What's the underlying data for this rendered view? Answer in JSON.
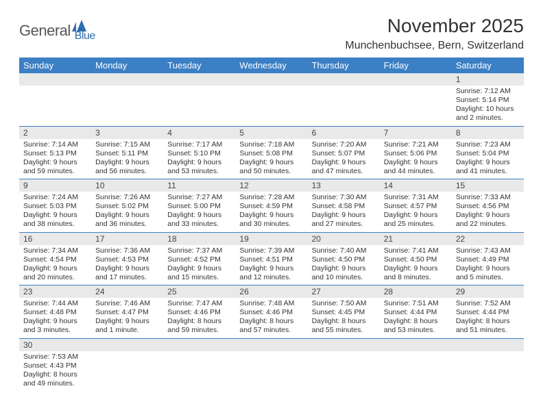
{
  "brand": {
    "part1": "General",
    "part2": "Blue"
  },
  "title": "November 2025",
  "location": "Munchenbuchsee, Bern, Switzerland",
  "colors": {
    "header_bg": "#3b7fc4",
    "header_text": "#ffffff",
    "num_strip_bg": "#e9e9e9",
    "divider": "#3b7fc4",
    "body_text": "#333333",
    "brand_gray": "#555555",
    "brand_blue": "#2f6eab"
  },
  "day_names": [
    "Sunday",
    "Monday",
    "Tuesday",
    "Wednesday",
    "Thursday",
    "Friday",
    "Saturday"
  ],
  "weeks": [
    [
      null,
      null,
      null,
      null,
      null,
      null,
      {
        "n": "1",
        "sunrise": "Sunrise: 7:12 AM",
        "sunset": "Sunset: 5:14 PM",
        "day1": "Daylight: 10 hours",
        "day2": "and 2 minutes."
      }
    ],
    [
      {
        "n": "2",
        "sunrise": "Sunrise: 7:14 AM",
        "sunset": "Sunset: 5:13 PM",
        "day1": "Daylight: 9 hours",
        "day2": "and 59 minutes."
      },
      {
        "n": "3",
        "sunrise": "Sunrise: 7:15 AM",
        "sunset": "Sunset: 5:11 PM",
        "day1": "Daylight: 9 hours",
        "day2": "and 56 minutes."
      },
      {
        "n": "4",
        "sunrise": "Sunrise: 7:17 AM",
        "sunset": "Sunset: 5:10 PM",
        "day1": "Daylight: 9 hours",
        "day2": "and 53 minutes."
      },
      {
        "n": "5",
        "sunrise": "Sunrise: 7:18 AM",
        "sunset": "Sunset: 5:08 PM",
        "day1": "Daylight: 9 hours",
        "day2": "and 50 minutes."
      },
      {
        "n": "6",
        "sunrise": "Sunrise: 7:20 AM",
        "sunset": "Sunset: 5:07 PM",
        "day1": "Daylight: 9 hours",
        "day2": "and 47 minutes."
      },
      {
        "n": "7",
        "sunrise": "Sunrise: 7:21 AM",
        "sunset": "Sunset: 5:06 PM",
        "day1": "Daylight: 9 hours",
        "day2": "and 44 minutes."
      },
      {
        "n": "8",
        "sunrise": "Sunrise: 7:23 AM",
        "sunset": "Sunset: 5:04 PM",
        "day1": "Daylight: 9 hours",
        "day2": "and 41 minutes."
      }
    ],
    [
      {
        "n": "9",
        "sunrise": "Sunrise: 7:24 AM",
        "sunset": "Sunset: 5:03 PM",
        "day1": "Daylight: 9 hours",
        "day2": "and 38 minutes."
      },
      {
        "n": "10",
        "sunrise": "Sunrise: 7:26 AM",
        "sunset": "Sunset: 5:02 PM",
        "day1": "Daylight: 9 hours",
        "day2": "and 36 minutes."
      },
      {
        "n": "11",
        "sunrise": "Sunrise: 7:27 AM",
        "sunset": "Sunset: 5:00 PM",
        "day1": "Daylight: 9 hours",
        "day2": "and 33 minutes."
      },
      {
        "n": "12",
        "sunrise": "Sunrise: 7:28 AM",
        "sunset": "Sunset: 4:59 PM",
        "day1": "Daylight: 9 hours",
        "day2": "and 30 minutes."
      },
      {
        "n": "13",
        "sunrise": "Sunrise: 7:30 AM",
        "sunset": "Sunset: 4:58 PM",
        "day1": "Daylight: 9 hours",
        "day2": "and 27 minutes."
      },
      {
        "n": "14",
        "sunrise": "Sunrise: 7:31 AM",
        "sunset": "Sunset: 4:57 PM",
        "day1": "Daylight: 9 hours",
        "day2": "and 25 minutes."
      },
      {
        "n": "15",
        "sunrise": "Sunrise: 7:33 AM",
        "sunset": "Sunset: 4:56 PM",
        "day1": "Daylight: 9 hours",
        "day2": "and 22 minutes."
      }
    ],
    [
      {
        "n": "16",
        "sunrise": "Sunrise: 7:34 AM",
        "sunset": "Sunset: 4:54 PM",
        "day1": "Daylight: 9 hours",
        "day2": "and 20 minutes."
      },
      {
        "n": "17",
        "sunrise": "Sunrise: 7:36 AM",
        "sunset": "Sunset: 4:53 PM",
        "day1": "Daylight: 9 hours",
        "day2": "and 17 minutes."
      },
      {
        "n": "18",
        "sunrise": "Sunrise: 7:37 AM",
        "sunset": "Sunset: 4:52 PM",
        "day1": "Daylight: 9 hours",
        "day2": "and 15 minutes."
      },
      {
        "n": "19",
        "sunrise": "Sunrise: 7:39 AM",
        "sunset": "Sunset: 4:51 PM",
        "day1": "Daylight: 9 hours",
        "day2": "and 12 minutes."
      },
      {
        "n": "20",
        "sunrise": "Sunrise: 7:40 AM",
        "sunset": "Sunset: 4:50 PM",
        "day1": "Daylight: 9 hours",
        "day2": "and 10 minutes."
      },
      {
        "n": "21",
        "sunrise": "Sunrise: 7:41 AM",
        "sunset": "Sunset: 4:50 PM",
        "day1": "Daylight: 9 hours",
        "day2": "and 8 minutes."
      },
      {
        "n": "22",
        "sunrise": "Sunrise: 7:43 AM",
        "sunset": "Sunset: 4:49 PM",
        "day1": "Daylight: 9 hours",
        "day2": "and 5 minutes."
      }
    ],
    [
      {
        "n": "23",
        "sunrise": "Sunrise: 7:44 AM",
        "sunset": "Sunset: 4:48 PM",
        "day1": "Daylight: 9 hours",
        "day2": "and 3 minutes."
      },
      {
        "n": "24",
        "sunrise": "Sunrise: 7:46 AM",
        "sunset": "Sunset: 4:47 PM",
        "day1": "Daylight: 9 hours",
        "day2": "and 1 minute."
      },
      {
        "n": "25",
        "sunrise": "Sunrise: 7:47 AM",
        "sunset": "Sunset: 4:46 PM",
        "day1": "Daylight: 8 hours",
        "day2": "and 59 minutes."
      },
      {
        "n": "26",
        "sunrise": "Sunrise: 7:48 AM",
        "sunset": "Sunset: 4:46 PM",
        "day1": "Daylight: 8 hours",
        "day2": "and 57 minutes."
      },
      {
        "n": "27",
        "sunrise": "Sunrise: 7:50 AM",
        "sunset": "Sunset: 4:45 PM",
        "day1": "Daylight: 8 hours",
        "day2": "and 55 minutes."
      },
      {
        "n": "28",
        "sunrise": "Sunrise: 7:51 AM",
        "sunset": "Sunset: 4:44 PM",
        "day1": "Daylight: 8 hours",
        "day2": "and 53 minutes."
      },
      {
        "n": "29",
        "sunrise": "Sunrise: 7:52 AM",
        "sunset": "Sunset: 4:44 PM",
        "day1": "Daylight: 8 hours",
        "day2": "and 51 minutes."
      }
    ],
    [
      {
        "n": "30",
        "sunrise": "Sunrise: 7:53 AM",
        "sunset": "Sunset: 4:43 PM",
        "day1": "Daylight: 8 hours",
        "day2": "and 49 minutes."
      },
      null,
      null,
      null,
      null,
      null,
      null
    ]
  ]
}
